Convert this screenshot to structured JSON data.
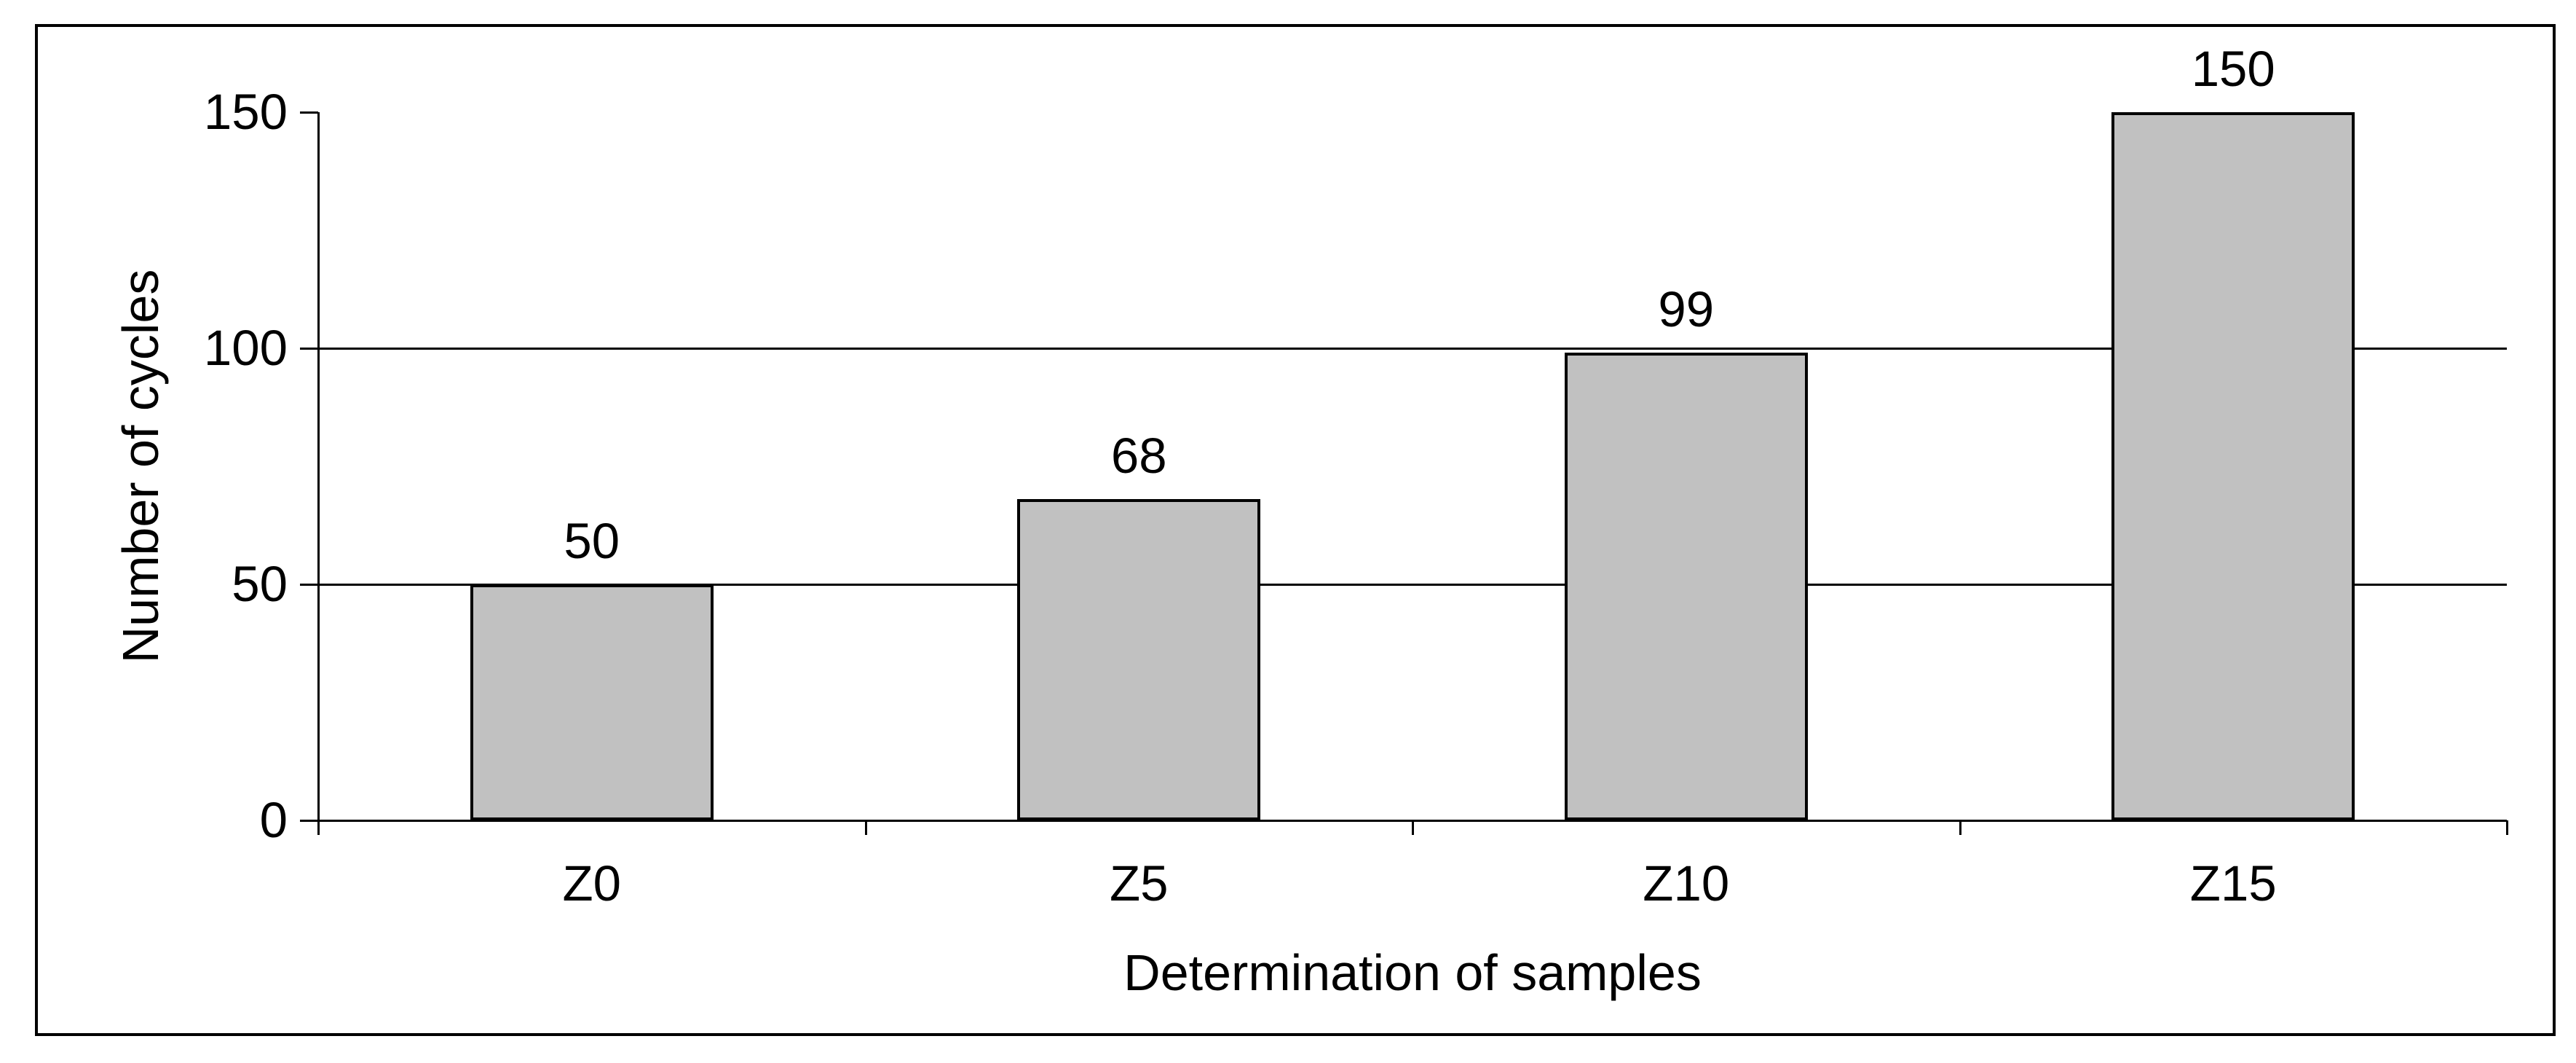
{
  "chart_data": {
    "type": "bar",
    "title": "",
    "categories": [
      "Z0",
      "Z5",
      "Z10",
      "Z15"
    ],
    "values": [
      50,
      68,
      99,
      150
    ],
    "bar_labels": [
      "50",
      "68",
      "99",
      "150"
    ],
    "xlabel": "Determination of samples",
    "ylabel": "Number of cycles",
    "ylim": [
      0,
      150
    ],
    "yticks": [
      0,
      50,
      100,
      150
    ],
    "ytick_labels": [
      "0",
      "50",
      "100",
      "150"
    ],
    "gridline_values": [
      50,
      100
    ],
    "grid": "horizontal",
    "legend": "none",
    "bar_fill_color": "#c1c1c1",
    "bar_border_color": "#000000",
    "axis_color": "#000000",
    "background_color": "#ffffff"
  }
}
